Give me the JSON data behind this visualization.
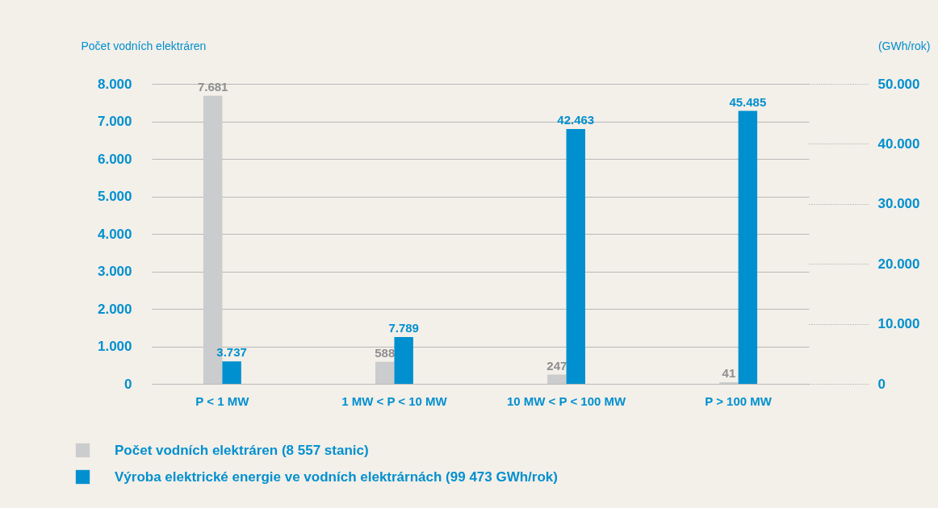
{
  "chart_data": {
    "type": "bar",
    "ylabel": "Počet vodních elektráren",
    "y2label": "(GWh/rok)",
    "categories": [
      "P < 1 MW",
      "1 MW < P < 10 MW",
      "10 MW < P < 100 MW",
      "P > 100 MW"
    ],
    "series": [
      {
        "name": "Počet vodních elektráren (8 557 stanic)",
        "color": "#cbcccd",
        "values": [
          7681,
          588,
          247,
          41
        ],
        "value_labels": [
          "7.681",
          "588",
          "247",
          "41"
        ]
      },
      {
        "name": "Výroba elektrické energie ve vodních elektrárnách (99 473 GWh/rok)",
        "color": "#0090cf",
        "axis": "y2",
        "values": [
          3737,
          7789,
          42463,
          45485
        ],
        "value_labels": [
          "3.737",
          "7.789",
          "42.463",
          "45.485"
        ]
      }
    ],
    "ylim": [
      0,
      8000
    ],
    "yticks": [
      {
        "value": 0,
        "label": "0"
      },
      {
        "value": 1000,
        "label": "1.000"
      },
      {
        "value": 2000,
        "label": "2.000"
      },
      {
        "value": 3000,
        "label": "3.000"
      },
      {
        "value": 4000,
        "label": "4.000"
      },
      {
        "value": 5000,
        "label": "5.000"
      },
      {
        "value": 6000,
        "label": "6.000"
      },
      {
        "value": 7000,
        "label": "7.000"
      },
      {
        "value": 8000,
        "label": "8.000"
      }
    ],
    "y2lim": [
      0,
      50000
    ],
    "y2ticks": [
      {
        "value": 0,
        "label": "0"
      },
      {
        "value": 10000,
        "label": "10.000"
      },
      {
        "value": 20000,
        "label": "20.000"
      },
      {
        "value": 30000,
        "label": "30.000"
      },
      {
        "value": 40000,
        "label": "40.000"
      },
      {
        "value": 50000,
        "label": "50.000"
      }
    ],
    "grid": "y",
    "legend": "bottom"
  }
}
